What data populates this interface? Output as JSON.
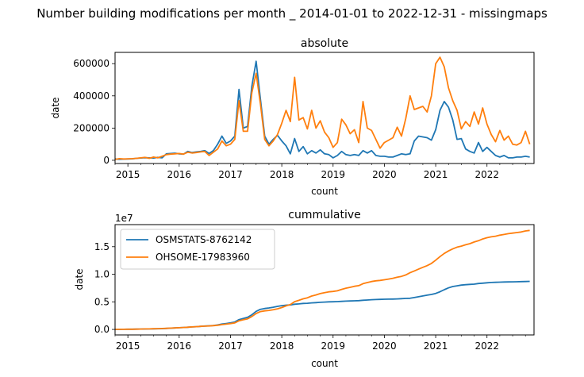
{
  "figure": {
    "suptitle": "Number building modifications per month _ 2014-01-01 to 2022-12-31 - missingmaps"
  },
  "chart_data": [
    {
      "type": "line",
      "title": "absolute",
      "xlabel": "count",
      "ylabel": "date",
      "x_start": "2014-10",
      "x_step": "month",
      "xlim": [
        "2014-10",
        "2022-12"
      ],
      "ylim": [
        -20000,
        670000
      ],
      "xticks": [
        "2015",
        "2016",
        "2017",
        "2018",
        "2019",
        "2020",
        "2021",
        "2022"
      ],
      "yticks": [
        0,
        200000,
        400000,
        600000
      ],
      "ytick_labels": [
        "0",
        "200000",
        "400000",
        "600000"
      ],
      "legend": false,
      "series": [
        {
          "name": "OSMSTATS-8762142",
          "color": "#1f77b4",
          "values": [
            8000,
            6000,
            7000,
            8000,
            9000,
            12000,
            14000,
            16000,
            15000,
            14000,
            18000,
            15000,
            40000,
            42000,
            44000,
            40000,
            38000,
            55000,
            48000,
            52000,
            55000,
            60000,
            42000,
            60000,
            100000,
            150000,
            105000,
            120000,
            150000,
            440000,
            200000,
            210000,
            460000,
            615000,
            380000,
            150000,
            100000,
            130000,
            155000,
            120000,
            90000,
            40000,
            135000,
            55000,
            85000,
            40000,
            60000,
            45000,
            65000,
            40000,
            35000,
            15000,
            30000,
            55000,
            35000,
            30000,
            35000,
            30000,
            60000,
            45000,
            60000,
            30000,
            25000,
            25000,
            20000,
            20000,
            30000,
            40000,
            35000,
            40000,
            120000,
            150000,
            145000,
            140000,
            125000,
            190000,
            310000,
            365000,
            330000,
            250000,
            130000,
            135000,
            70000,
            55000,
            45000,
            110000,
            55000,
            80000,
            55000,
            30000,
            20000,
            30000,
            15000,
            15000,
            20000,
            20000,
            25000,
            20000
          ]
        },
        {
          "name": "OHSOME-17983960",
          "color": "#ff7f0e",
          "values": [
            5000,
            10000,
            8000,
            9000,
            10000,
            12000,
            15000,
            18000,
            12000,
            20000,
            15000,
            25000,
            35000,
            38000,
            40000,
            42000,
            38000,
            50000,
            45000,
            48000,
            52000,
            55000,
            30000,
            50000,
            70000,
            120000,
            90000,
            100000,
            130000,
            370000,
            180000,
            180000,
            420000,
            540000,
            350000,
            130000,
            90000,
            120000,
            160000,
            230000,
            310000,
            240000,
            515000,
            250000,
            265000,
            195000,
            310000,
            200000,
            245000,
            175000,
            140000,
            80000,
            110000,
            255000,
            220000,
            165000,
            190000,
            110000,
            365000,
            200000,
            185000,
            130000,
            75000,
            110000,
            125000,
            140000,
            205000,
            150000,
            260000,
            400000,
            315000,
            325000,
            335000,
            300000,
            400000,
            600000,
            640000,
            580000,
            450000,
            370000,
            310000,
            195000,
            240000,
            210000,
            300000,
            225000,
            325000,
            225000,
            160000,
            115000,
            185000,
            125000,
            150000,
            100000,
            95000,
            110000,
            180000,
            100000
          ]
        }
      ]
    },
    {
      "type": "line",
      "title": "cummulative",
      "xlabel": "count",
      "ylabel": "date",
      "scale_label": "1e7",
      "x_start": "2014-10",
      "x_step": "month",
      "xlim": [
        "2014-10",
        "2022-12"
      ],
      "ylim": [
        -0.1,
        1.9
      ],
      "xticks": [
        "2015",
        "2016",
        "2017",
        "2018",
        "2019",
        "2020",
        "2021",
        "2022"
      ],
      "yticks": [
        0.0,
        0.5,
        1.0,
        1.5
      ],
      "ytick_labels": [
        "0.0",
        "0.5",
        "1.0",
        "1.5"
      ],
      "legend": true,
      "legend_position": "upper-left",
      "series": [
        {
          "name": "OSMSTATS-8762142",
          "color": "#1f77b4",
          "source": "cumulative-sum",
          "values": [
            0.0008,
            0.0014,
            0.0021,
            0.0029,
            0.0038,
            0.005,
            0.0064,
            0.008,
            0.0095,
            0.0109,
            0.0127,
            0.0142,
            0.0182,
            0.0224,
            0.0268,
            0.0308,
            0.0346,
            0.0401,
            0.0449,
            0.0501,
            0.0556,
            0.0616,
            0.0658,
            0.0718,
            0.0818,
            0.0968,
            0.1073,
            0.1193,
            0.1343,
            0.1783,
            0.1983,
            0.2193,
            0.2653,
            0.3268,
            0.3648,
            0.3798,
            0.3898,
            0.4028,
            0.4183,
            0.4303,
            0.4393,
            0.4433,
            0.4568,
            0.4623,
            0.4708,
            0.4748,
            0.4808,
            0.4853,
            0.4918,
            0.4958,
            0.4993,
            0.5008,
            0.5038,
            0.5093,
            0.5128,
            0.5158,
            0.5193,
            0.5223,
            0.5283,
            0.5328,
            0.5388,
            0.5418,
            0.5443,
            0.5468,
            0.5488,
            0.5508,
            0.5538,
            0.5578,
            0.5613,
            0.5653,
            0.5773,
            0.5923,
            0.6068,
            0.6208,
            0.6333,
            0.6523,
            0.6833,
            0.7198,
            0.7528,
            0.7778,
            0.7908,
            0.8043,
            0.8113,
            0.8168,
            0.8213,
            0.8323,
            0.8378,
            0.8458,
            0.8513,
            0.8543,
            0.8563,
            0.8593,
            0.8608,
            0.8623,
            0.8643,
            0.8663,
            0.8688,
            0.8708
          ]
        },
        {
          "name": "OHSOME-17983960",
          "color": "#ff7f0e",
          "source": "cumulative-sum",
          "values": [
            0.0005,
            0.0015,
            0.0023,
            0.0032,
            0.0042,
            0.0054,
            0.0069,
            0.0087,
            0.0099,
            0.0119,
            0.0134,
            0.0159,
            0.0194,
            0.0232,
            0.0272,
            0.0314,
            0.0352,
            0.0402,
            0.0447,
            0.0495,
            0.0547,
            0.0602,
            0.0632,
            0.0682,
            0.0752,
            0.0872,
            0.0962,
            0.1062,
            0.1192,
            0.1562,
            0.1742,
            0.1922,
            0.2342,
            0.2882,
            0.3232,
            0.3362,
            0.3452,
            0.3572,
            0.3732,
            0.3962,
            0.4272,
            0.4512,
            0.5027,
            0.5277,
            0.5542,
            0.5737,
            0.6047,
            0.6247,
            0.6492,
            0.6667,
            0.6807,
            0.6887,
            0.6997,
            0.7252,
            0.7472,
            0.7637,
            0.7827,
            0.7937,
            0.8302,
            0.8502,
            0.8687,
            0.8817,
            0.8892,
            0.9002,
            0.9127,
            0.9267,
            0.9472,
            0.9622,
            0.9882,
            1.0282,
            1.0597,
            1.0922,
            1.1257,
            1.1557,
            1.1957,
            1.2557,
            1.3197,
            1.3777,
            1.4227,
            1.4597,
            1.4907,
            1.5102,
            1.5342,
            1.5552,
            1.5852,
            1.6077,
            1.6402,
            1.6627,
            1.6787,
            1.6902,
            1.7087,
            1.7212,
            1.7362,
            1.7462,
            1.7557,
            1.7667,
            1.7847,
            1.7947
          ]
        }
      ]
    }
  ]
}
